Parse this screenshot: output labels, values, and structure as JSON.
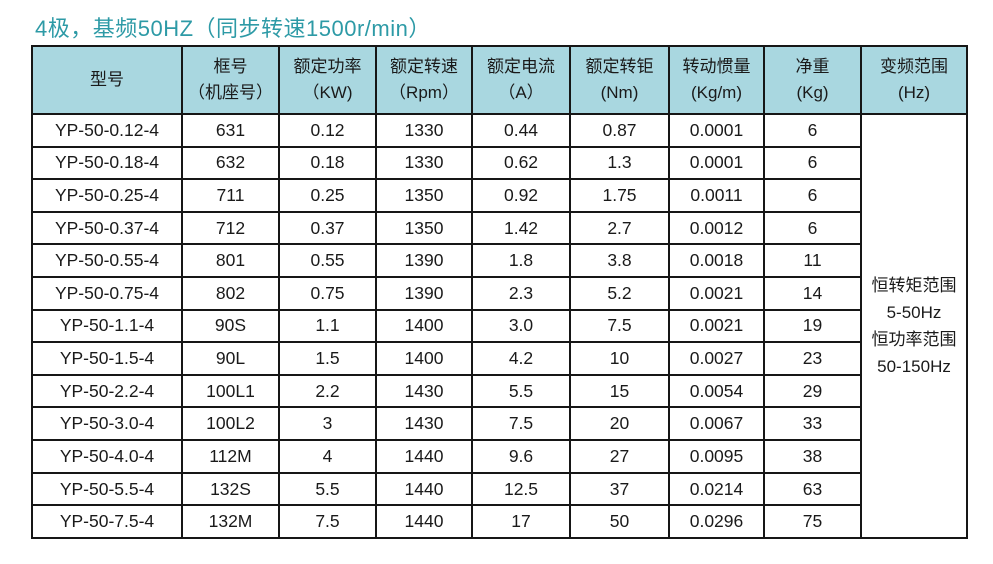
{
  "title": "4极，基频50HZ（同步转速1500r/min）",
  "colors": {
    "accent": "#2d9aa6",
    "header_bg": "#a9d7e0",
    "border": "#161616"
  },
  "table": {
    "headers": [
      {
        "line1": "型号",
        "line2": ""
      },
      {
        "line1": "框号",
        "line2": "（机座号）"
      },
      {
        "line1": "额定功率",
        "line2": "（KW)"
      },
      {
        "line1": "额定转速",
        "line2": "（Rpm）"
      },
      {
        "line1": "额定电流",
        "line2": "（A）"
      },
      {
        "line1": "额定转钜",
        "line2": "(Nm)"
      },
      {
        "line1": "转动惯量",
        "line2": "(Kg/m)"
      },
      {
        "line1": "净重",
        "line2": "(Kg)"
      },
      {
        "line1": "变频范围",
        "line2": "(Hz)"
      }
    ],
    "rows": [
      [
        "YP-50-0.12-4",
        "631",
        "0.12",
        "1330",
        "0.44",
        "0.87",
        "0.0001",
        "6"
      ],
      [
        "YP-50-0.18-4",
        "632",
        "0.18",
        "1330",
        "0.62",
        "1.3",
        "0.0001",
        "6"
      ],
      [
        "YP-50-0.25-4",
        "711",
        "0.25",
        "1350",
        "0.92",
        "1.75",
        "0.0011",
        "6"
      ],
      [
        "YP-50-0.37-4",
        "712",
        "0.37",
        "1350",
        "1.42",
        "2.7",
        "0.0012",
        "6"
      ],
      [
        "YP-50-0.55-4",
        "801",
        "0.55",
        "1390",
        "1.8",
        "3.8",
        "0.0018",
        "11"
      ],
      [
        "YP-50-0.75-4",
        "802",
        "0.75",
        "1390",
        "2.3",
        "5.2",
        "0.0021",
        "14"
      ],
      [
        "YP-50-1.1-4",
        "90S",
        "1.1",
        "1400",
        "3.0",
        "7.5",
        "0.0021",
        "19"
      ],
      [
        "YP-50-1.5-4",
        "90L",
        "1.5",
        "1400",
        "4.2",
        "10",
        "0.0027",
        "23"
      ],
      [
        "YP-50-2.2-4",
        "100L1",
        "2.2",
        "1430",
        "5.5",
        "15",
        "0.0054",
        "29"
      ],
      [
        "YP-50-3.0-4",
        "100L2",
        "3",
        "1430",
        "7.5",
        "20",
        "0.0067",
        "33"
      ],
      [
        "YP-50-4.0-4",
        "112M",
        "4",
        "1440",
        "9.6",
        "27",
        "0.0095",
        "38"
      ],
      [
        "YP-50-5.5-4",
        "132S",
        "5.5",
        "1440",
        "12.5",
        "37",
        "0.0214",
        "63"
      ],
      [
        "YP-50-7.5-4",
        "132M",
        "7.5",
        "1440",
        "17",
        "50",
        "0.0296",
        "75"
      ]
    ],
    "merged_note_lines": [
      "恒转矩范围",
      "5-50Hz",
      "恒功率范围",
      "50-150Hz"
    ]
  }
}
